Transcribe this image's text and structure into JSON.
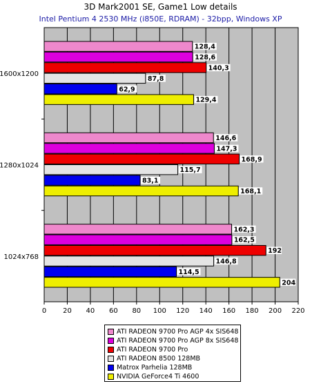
{
  "chart_data": {
    "type": "bar",
    "orientation": "horizontal",
    "title": "3D Mark2001 SE,  Game1 Low details",
    "subtitle": "Intel Pentium 4 2530 MHz (i850E, RDRAM) - 32bpp, Windows XP",
    "categories": [
      "1600x1200",
      "1280x1024",
      "1024x768"
    ],
    "xlim": [
      0,
      220
    ],
    "xticks": [
      0,
      20,
      40,
      60,
      80,
      100,
      120,
      140,
      160,
      180,
      200,
      220
    ],
    "grid": true,
    "legend_position": "bottom",
    "series": [
      {
        "name": "ATI RADEON 9700 Pro AGP 4x SIS648",
        "color": "#ee88cc",
        "values": [
          128.4,
          146.6,
          162.3
        ],
        "labels": [
          "128,4",
          "146,6",
          "162,3"
        ]
      },
      {
        "name": "ATI RADEON 9700 Pro AGP 8x SIS648",
        "color": "#dd00dd",
        "values": [
          128.6,
          147.3,
          162.5
        ],
        "labels": [
          "128,6",
          "147,3",
          "162,5"
        ]
      },
      {
        "name": "ATI RADEON 9700 Pro",
        "color": "#ee0000",
        "values": [
          140.3,
          168.9,
          192
        ],
        "labels": [
          "140,3",
          "168,9",
          "192"
        ]
      },
      {
        "name": "ATI RADEON 8500 128MB",
        "color": "#e4e4e4",
        "values": [
          87.8,
          115.7,
          146.8
        ],
        "labels": [
          "87,8",
          "115,7",
          "146,8"
        ]
      },
      {
        "name": "Matrox Parhelia 128MB",
        "color": "#0000ee",
        "values": [
          62.9,
          83.1,
          114.5
        ],
        "labels": [
          "62,9",
          "83,1",
          "114,5"
        ]
      },
      {
        "name": "NVIDIA GeForce4 Ti 4600",
        "color": "#eeee00",
        "values": [
          129.4,
          168.1,
          204
        ],
        "labels": [
          "129,4",
          "168,1",
          "204"
        ]
      }
    ]
  }
}
